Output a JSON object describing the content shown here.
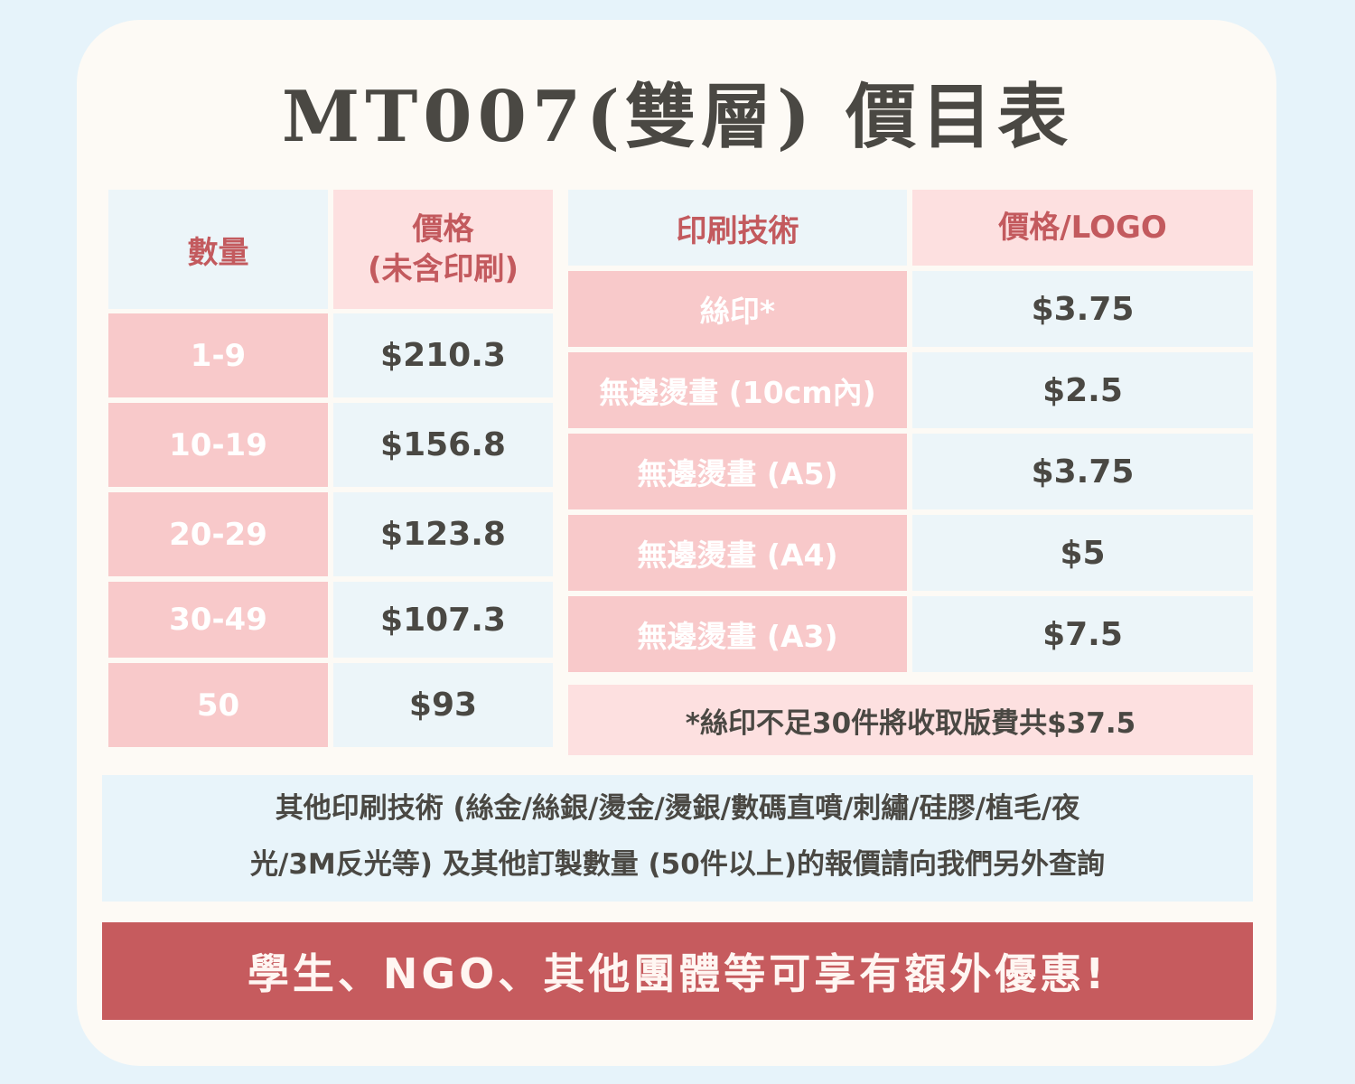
{
  "title": "MT007(雙層) 價目表",
  "left_table": {
    "header_qty": "數量",
    "header_price_line1": "價格",
    "header_price_line2": "(未含印刷)",
    "rows": [
      {
        "qty": "1-9",
        "price": "$210.3"
      },
      {
        "qty": "10-19",
        "price": "$156.8"
      },
      {
        "qty": "20-29",
        "price": "$123.8"
      },
      {
        "qty": "30-49",
        "price": "$107.3"
      },
      {
        "qty": "50",
        "price": "$93"
      }
    ]
  },
  "right_table": {
    "header_tech": "印刷技術",
    "header_price": "價格/LOGO",
    "rows": [
      {
        "tech": "絲印*",
        "price": "$3.75"
      },
      {
        "tech": "無邊燙畫 (10cm內)",
        "price": "$2.5"
      },
      {
        "tech": "無邊燙畫 (A5)",
        "price": "$3.75"
      },
      {
        "tech": "無邊燙畫 (A4)",
        "price": "$5"
      },
      {
        "tech": "無邊燙畫 (A3)",
        "price": "$7.5"
      }
    ],
    "note": "*絲印不足30件將收取版費共$37.5"
  },
  "other_info": {
    "line1": "其他印刷技術 (絲金/絲銀/燙金/燙銀/數碼直噴/刺繡/硅膠/植毛/夜",
    "line2": "光/3M反光等) 及其他訂製數量 (50件以上)的報價請向我們另外查詢"
  },
  "banner": "學生、NGO、其他團體等可享有額外優惠!",
  "colors": {
    "background": "#e6f3fa",
    "card": "#fdfaf5",
    "pink": "#f8c9ca",
    "light_pink": "#fde0e0",
    "light_blue": "#ecf5f9",
    "accent_red": "#c65b5e",
    "text_dark": "#4a4843"
  }
}
